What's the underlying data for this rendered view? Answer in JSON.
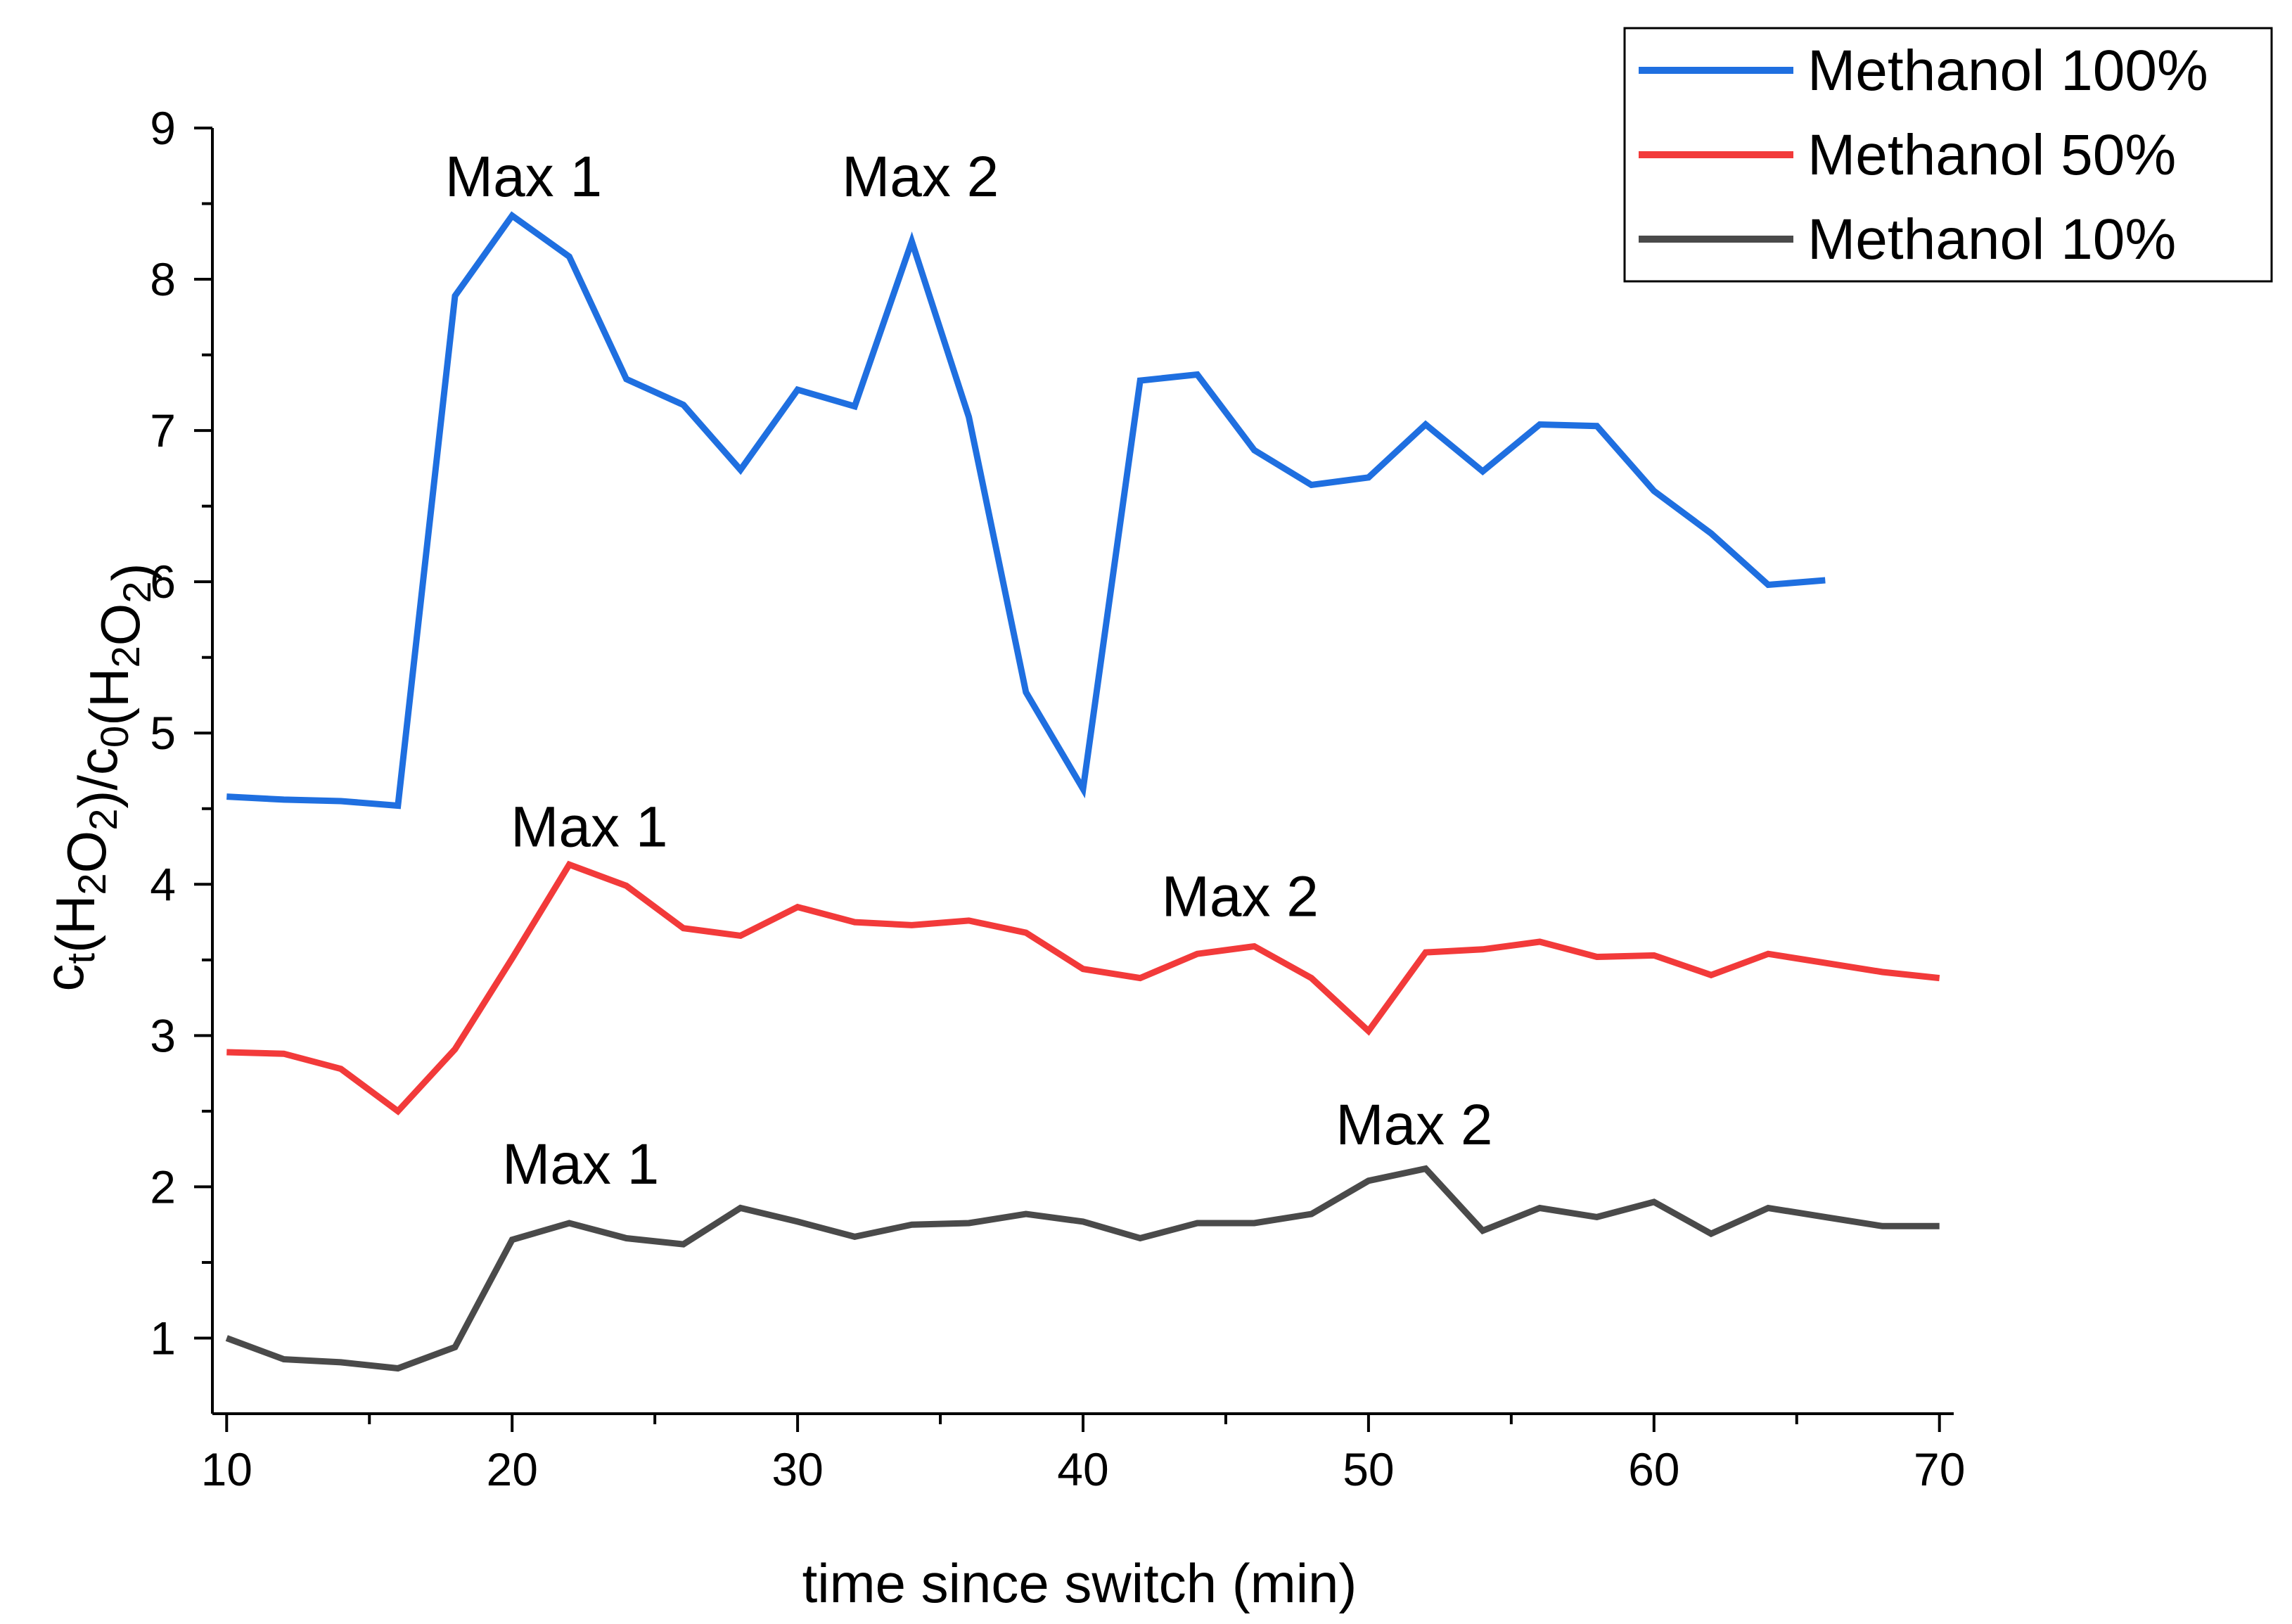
{
  "chart_data": {
    "type": "line",
    "title": "",
    "xlabel": "time since switch (min)",
    "ylabel": {
      "parts": [
        {
          "t": "c",
          "s": "normal"
        },
        {
          "t": "t",
          "s": "sub"
        },
        {
          "t": "(H",
          "s": "normal"
        },
        {
          "t": "2",
          "s": "sub"
        },
        {
          "t": "O",
          "s": "normal"
        },
        {
          "t": "2",
          "s": "sub"
        },
        {
          "t": ")/c",
          "s": "normal"
        },
        {
          "t": "0",
          "s": "sub"
        },
        {
          "t": "(H",
          "s": "normal"
        },
        {
          "t": "2",
          "s": "sub"
        },
        {
          "t": "O",
          "s": "normal"
        },
        {
          "t": "2",
          "s": "sub"
        },
        {
          "t": ")",
          "s": "normal"
        }
      ]
    },
    "xlim": [
      9.5,
      70.5
    ],
    "ylim": [
      0.5,
      9
    ],
    "xticks": [
      10,
      20,
      30,
      40,
      50,
      60,
      70
    ],
    "xticks_minor": [
      15,
      25,
      35,
      45,
      55,
      65
    ],
    "yticks": [
      1,
      2,
      3,
      4,
      5,
      6,
      7,
      8,
      9
    ],
    "yticks_minor": [
      1.5,
      2.5,
      3.5,
      4.5,
      5.5,
      6.5,
      7.5,
      8.5
    ],
    "tick_labels_x": [
      "10",
      "20",
      "30",
      "40",
      "50",
      "60",
      "70"
    ],
    "tick_labels_y": [
      "1",
      "2",
      "3",
      "4",
      "5",
      "6",
      "7",
      "8",
      "9"
    ],
    "grid": false,
    "legend_position": "top-right",
    "series": [
      {
        "name": "Methanol 100%",
        "color": "#1f6fe0",
        "x": [
          10,
          12,
          14,
          16,
          18,
          20,
          22,
          24,
          26,
          28,
          30,
          32,
          34,
          36,
          38,
          40,
          42,
          44,
          46,
          48,
          50,
          52,
          54,
          56,
          58,
          60,
          62,
          64,
          66
        ],
        "y": [
          4.58,
          4.56,
          4.55,
          4.52,
          7.89,
          8.42,
          8.15,
          7.34,
          7.17,
          6.74,
          7.27,
          7.16,
          8.25,
          7.09,
          5.27,
          4.63,
          7.33,
          7.37,
          6.87,
          6.64,
          6.69,
          7.04,
          6.73,
          7.04,
          7.03,
          6.6,
          6.32,
          5.98,
          6.01
        ]
      },
      {
        "name": "Methanol 50%",
        "color": "#f23a3a",
        "x": [
          10,
          12,
          14,
          16,
          18,
          20,
          22,
          24,
          26,
          28,
          30,
          32,
          34,
          36,
          38,
          40,
          42,
          44,
          46,
          48,
          50,
          52,
          54,
          56,
          58,
          60,
          62,
          64,
          66,
          68,
          70
        ],
        "y": [
          2.89,
          2.88,
          2.78,
          2.5,
          2.91,
          3.51,
          4.13,
          3.99,
          3.71,
          3.66,
          3.85,
          3.75,
          3.73,
          3.76,
          3.68,
          3.44,
          3.38,
          3.54,
          3.59,
          3.38,
          3.03,
          3.55,
          3.57,
          3.62,
          3.52,
          3.53,
          3.4,
          3.54,
          3.48,
          3.42,
          3.38
        ]
      },
      {
        "name": "Methanol 10%",
        "color": "#4a4a4a",
        "x": [
          10,
          12,
          14,
          16,
          18,
          20,
          22,
          24,
          26,
          28,
          30,
          32,
          34,
          36,
          38,
          40,
          42,
          44,
          46,
          48,
          50,
          52,
          54,
          56,
          58,
          60,
          62,
          64,
          66,
          68,
          70
        ],
        "y": [
          1.0,
          0.86,
          0.84,
          0.8,
          0.94,
          1.65,
          1.76,
          1.66,
          1.62,
          1.86,
          1.77,
          1.67,
          1.75,
          1.76,
          1.82,
          1.77,
          1.66,
          1.76,
          1.76,
          1.82,
          2.04,
          2.12,
          1.71,
          1.86,
          1.8,
          1.9,
          1.69,
          1.86,
          1.8,
          1.74,
          1.74
        ]
      }
    ],
    "annotations": [
      {
        "text": "Max 1",
        "x": 20.4,
        "y": 8.55,
        "series": "Methanol 100%"
      },
      {
        "text": "Max 2",
        "x": 34.3,
        "y": 8.55,
        "series": "Methanol 100%"
      },
      {
        "text": "Max 1",
        "x": 22.7,
        "y": 4.25,
        "series": "Methanol 50%"
      },
      {
        "text": "Max 2",
        "x": 45.5,
        "y": 3.79,
        "series": "Methanol 50%"
      },
      {
        "text": "Max 1",
        "x": 22.4,
        "y": 2.02,
        "series": "Methanol 10%"
      },
      {
        "text": "Max 2",
        "x": 51.6,
        "y": 2.28,
        "series": "Methanol 10%"
      }
    ]
  }
}
